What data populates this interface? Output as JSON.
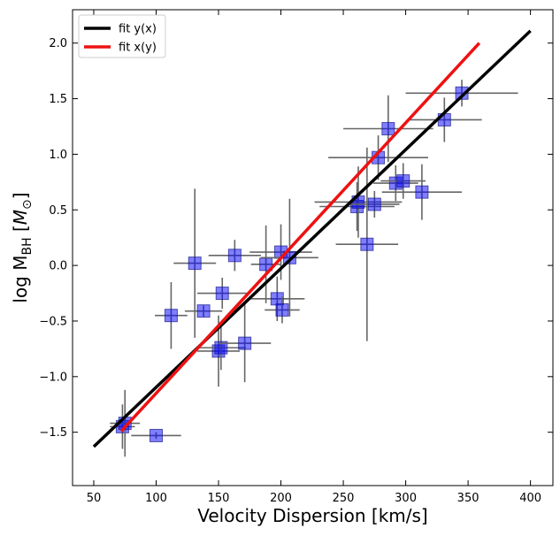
{
  "chart_data": {
    "type": "scatter",
    "xlabel": "Velocity Dispersion [km/s]",
    "ylabel": {
      "main": "log M",
      "sub": "BH",
      "unit_open": " [",
      "unit_symbol": "M",
      "unit_sub": "⊙",
      "unit_close": "]"
    },
    "xlim": [
      33,
      418
    ],
    "ylim": [
      -1.98,
      2.3
    ],
    "xticks": [
      50,
      100,
      150,
      200,
      250,
      300,
      350,
      400
    ],
    "yticks": [
      -1.5,
      -1.0,
      -0.5,
      0.0,
      0.5,
      1.0,
      1.5,
      2.0
    ],
    "xtick_labels": [
      "50",
      "100",
      "150",
      "200",
      "250",
      "300",
      "350",
      "400"
    ],
    "ytick_labels": [
      "−1.5",
      "−1.0",
      "−0.5",
      "0.0",
      "0.5",
      "1.0",
      "1.5",
      "2.0"
    ],
    "grid": false,
    "legend_position": "top-left",
    "marker_color": "#0000ff",
    "errorbar_color": "#666666",
    "series": [
      {
        "type": "points",
        "points": [
          {
            "x": 73,
            "y": -1.45,
            "xerr": 10,
            "yerr": 0.2
          },
          {
            "x": 75,
            "y": -1.42,
            "xerr": 12,
            "yerr": 0.3
          },
          {
            "x": 100,
            "y": -1.53,
            "xerr": 20,
            "yerr": 0.03
          },
          {
            "x": 112,
            "y": -0.45,
            "xerr": 13,
            "yerr": 0.3
          },
          {
            "x": 131,
            "y": 0.02,
            "xerr": 17,
            "yerr": 0.67
          },
          {
            "x": 138,
            "y": -0.41,
            "xerr": 15,
            "yerr": 0.05
          },
          {
            "x": 150,
            "y": -0.77,
            "xerr": 17,
            "yerr": 0.32
          },
          {
            "x": 152,
            "y": -0.74,
            "xerr": 20,
            "yerr": 0.2
          },
          {
            "x": 153,
            "y": -0.25,
            "xerr": 20,
            "yerr": 0.14
          },
          {
            "x": 163,
            "y": 0.09,
            "xerr": 21,
            "yerr": 0.14
          },
          {
            "x": 171,
            "y": -0.7,
            "xerr": 21,
            "yerr": 0.35
          },
          {
            "x": 188,
            "y": 0.01,
            "xerr": 12,
            "yerr": 0.35
          },
          {
            "x": 197,
            "y": -0.3,
            "xerr": 22,
            "yerr": 0.2
          },
          {
            "x": 200,
            "y": 0.12,
            "xerr": 25,
            "yerr": 0.25
          },
          {
            "x": 201,
            "y": -0.4,
            "xerr": 14,
            "yerr": 0.12
          },
          {
            "x": 207,
            "y": 0.07,
            "xerr": 23,
            "yerr": 0.53
          },
          {
            "x": 261,
            "y": 0.53,
            "xerr": 30,
            "yerr": 0.22
          },
          {
            "x": 262,
            "y": 0.57,
            "xerr": 35,
            "yerr": 0.32
          },
          {
            "x": 269,
            "y": 0.19,
            "xerr": 25,
            "yerr": 0.87
          },
          {
            "x": 275,
            "y": 0.55,
            "xerr": 20,
            "yerr": 0.12
          },
          {
            "x": 278,
            "y": 0.97,
            "xerr": 40,
            "yerr": 0.2
          },
          {
            "x": 286,
            "y": 1.23,
            "xerr": 36,
            "yerr": 0.3
          },
          {
            "x": 292,
            "y": 0.74,
            "xerr": 18,
            "yerr": 0.16
          },
          {
            "x": 298,
            "y": 0.76,
            "xerr": 18,
            "yerr": 0.16
          },
          {
            "x": 313,
            "y": 0.66,
            "xerr": 32,
            "yerr": 0.25
          },
          {
            "x": 331,
            "y": 1.31,
            "xerr": 30,
            "yerr": 0.2
          },
          {
            "x": 345,
            "y": 1.55,
            "xerr": 45,
            "yerr": 0.12
          }
        ]
      },
      {
        "name": "fit y(x)",
        "type": "line",
        "color": "#000000",
        "x": [
          50,
          400
        ],
        "y": [
          -1.63,
          2.11
        ]
      },
      {
        "name": "fit x(y)",
        "type": "line",
        "color": "#ee1111",
        "x": [
          72,
          359
        ],
        "y": [
          -1.49,
          2.0
        ]
      }
    ]
  }
}
